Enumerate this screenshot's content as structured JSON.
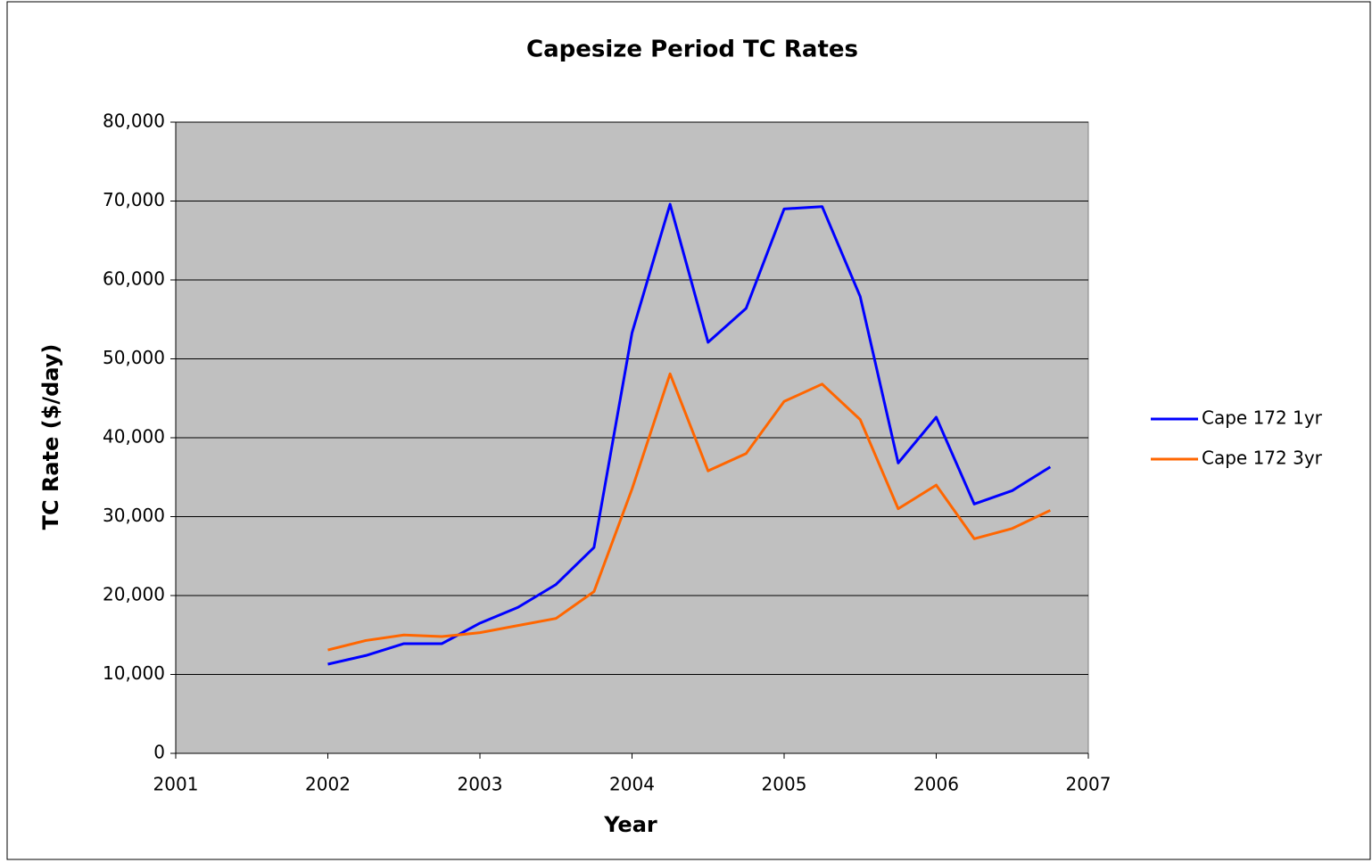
{
  "chart_data": {
    "type": "line",
    "title": "Capesize Period TC Rates",
    "x_label": "Year",
    "y_label": "TC Rate ($/day)",
    "x": [
      2002,
      2002.25,
      2002.5,
      2002.75,
      2003,
      2003.25,
      2003.5,
      2003.75,
      2004,
      2004.25,
      2004.5,
      2004.75,
      2005,
      2005.25,
      2005.5,
      2005.75,
      2006,
      2006.25,
      2006.5,
      2006.75
    ],
    "series": [
      {
        "name": "Cape 172 1yr",
        "color": "#0000ff",
        "values": [
          11300,
          12400,
          13900,
          13900,
          16500,
          18500,
          21400,
          26100,
          53300,
          69600,
          52100,
          56400,
          69000,
          69300,
          57900,
          36800,
          42600,
          31600,
          33300,
          36300
        ]
      },
      {
        "name": "Cape 172 3yr",
        "color": "#ff6600",
        "values": [
          13100,
          14300,
          15000,
          14800,
          15300,
          16200,
          17100,
          20500,
          33500,
          48100,
          35800,
          38000,
          44600,
          46800,
          42300,
          31000,
          34000,
          27200,
          28500,
          30800
        ]
      }
    ],
    "xlim": [
      2001,
      2007
    ],
    "xticks": [
      2001,
      2002,
      2003,
      2004,
      2005,
      2006,
      2007
    ],
    "ylim": [
      0,
      80000
    ],
    "yticks": [
      0,
      {
        "value": 10000,
        "label": "10,000"
      },
      {
        "value": 20000,
        "label": "20,000"
      },
      {
        "value": 30000,
        "label": "30,000"
      },
      {
        "value": 40000,
        "label": "40,000"
      },
      {
        "value": 50000,
        "label": "50,000"
      },
      {
        "value": 60000,
        "label": "60,000"
      },
      {
        "value": 70000,
        "label": "70,000"
      },
      {
        "value": 80000,
        "label": "80,000"
      }
    ],
    "grid": true,
    "legend": "right",
    "plot_background": "#c0c0c0"
  }
}
